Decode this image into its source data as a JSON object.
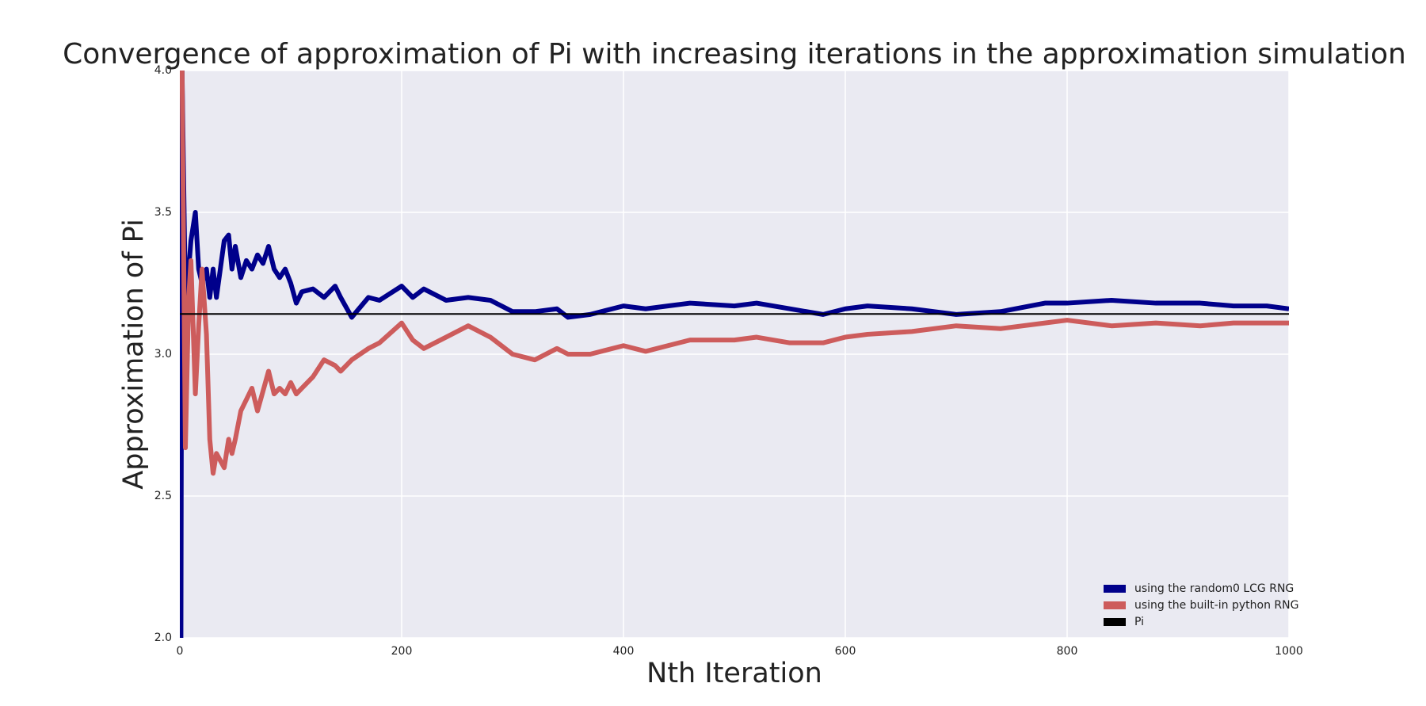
{
  "chart_data": {
    "type": "line",
    "title": "Convergence of approximation of Pi with increasing iterations in the approximation simulation",
    "xlabel": "Nth Iteration",
    "ylabel": "Approximation of Pi",
    "x": [
      1,
      2,
      5,
      8,
      10,
      14,
      17,
      20,
      24,
      27,
      30,
      33,
      40,
      44,
      47,
      50,
      55,
      60,
      65,
      70,
      75,
      80,
      85,
      90,
      95,
      100,
      105,
      110,
      120,
      130,
      140,
      145,
      155,
      170,
      180,
      200,
      210,
      220,
      240,
      260,
      280,
      300,
      320,
      340,
      350,
      370,
      400,
      420,
      440,
      460,
      500,
      520,
      550,
      580,
      600,
      620,
      660,
      700,
      740,
      780,
      800,
      840,
      880,
      920,
      950,
      980,
      1000
    ],
    "series": [
      {
        "name": "using the random0 LCG RNG",
        "color": "#00008b",
        "width": 6,
        "values": [
          2.0,
          4.0,
          3.2,
          3.3,
          3.4,
          3.5,
          3.3,
          3.25,
          3.3,
          3.2,
          3.3,
          3.2,
          3.4,
          3.42,
          3.3,
          3.38,
          3.27,
          3.33,
          3.3,
          3.35,
          3.32,
          3.38,
          3.3,
          3.27,
          3.3,
          3.25,
          3.18,
          3.22,
          3.23,
          3.2,
          3.24,
          3.2,
          3.13,
          3.2,
          3.19,
          3.24,
          3.2,
          3.23,
          3.19,
          3.2,
          3.19,
          3.15,
          3.15,
          3.16,
          3.13,
          3.14,
          3.17,
          3.16,
          3.17,
          3.18,
          3.17,
          3.18,
          3.16,
          3.14,
          3.16,
          3.17,
          3.16,
          3.14,
          3.15,
          3.18,
          3.18,
          3.19,
          3.18,
          3.18,
          3.17,
          3.17,
          3.16
        ]
      },
      {
        "name": "using the built-in python RNG",
        "color": "#cd5c5c",
        "width": 6,
        "values": [
          4.0,
          4.0,
          2.67,
          3.2,
          3.33,
          2.86,
          3.1,
          3.3,
          3.07,
          2.7,
          2.58,
          2.65,
          2.6,
          2.7,
          2.65,
          2.7,
          2.8,
          2.84,
          2.88,
          2.8,
          2.87,
          2.94,
          2.86,
          2.88,
          2.86,
          2.9,
          2.86,
          2.88,
          2.92,
          2.98,
          2.96,
          2.94,
          2.98,
          3.02,
          3.04,
          3.11,
          3.05,
          3.02,
          3.06,
          3.1,
          3.06,
          3.0,
          2.98,
          3.02,
          3.0,
          3.0,
          3.03,
          3.01,
          3.03,
          3.05,
          3.05,
          3.06,
          3.04,
          3.04,
          3.06,
          3.07,
          3.08,
          3.1,
          3.09,
          3.11,
          3.12,
          3.1,
          3.11,
          3.1,
          3.11,
          3.11,
          3.11
        ]
      },
      {
        "name": "Pi",
        "color": "#000000",
        "width": 2,
        "x": [
          0,
          1000
        ],
        "values": [
          3.14159,
          3.14159
        ]
      }
    ],
    "xlim": [
      0,
      1000
    ],
    "xticks": [
      0,
      200,
      400,
      600,
      800,
      1000
    ],
    "ylim": [
      2,
      4
    ],
    "yticks": [
      {
        "value": 2,
        "label": "2.0"
      },
      2.5,
      {
        "value": 3,
        "label": "3.0"
      },
      3.5,
      {
        "value": 4,
        "label": "4.0"
      }
    ],
    "grid": true,
    "legend": "lower right"
  }
}
